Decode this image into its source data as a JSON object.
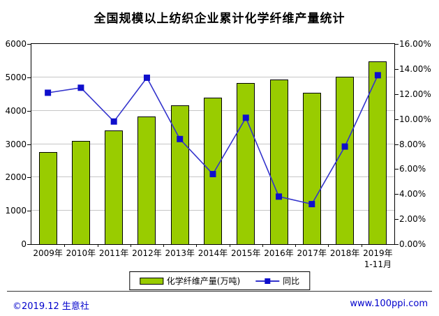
{
  "title": "全国规模以上纺织企业累计化学纤维产量统计",
  "footer": {
    "copyright": "©2019.12 生意社",
    "website": "www.100ppi.com"
  },
  "colors": {
    "bar": "#99CC00",
    "bar_border": "#000000",
    "line": "#3333CC",
    "marker": "#0F0FCC",
    "grid": "#C6C6C6",
    "axis_text": "#000000",
    "footer_text": "#0000CC"
  },
  "chart_data": {
    "type": "bar",
    "title": "全国规模以上纺织企业累计化学纤维产量统计",
    "categories": [
      "2009年",
      "2010年",
      "2011年",
      "2012年",
      "2013年",
      "2014年",
      "2015年",
      "2016年",
      "2017年",
      "2018年",
      "2019年"
    ],
    "last_category_note": "1-11月",
    "series": [
      {
        "name": "化学纤维产量(万吨)",
        "type": "bar",
        "axis": "left",
        "values": [
          2750,
          3090,
          3400,
          3830,
          4160,
          4390,
          4830,
          4930,
          4540,
          5010,
          5480
        ]
      },
      {
        "name": "同比",
        "type": "line",
        "axis": "right",
        "values": [
          12.1,
          12.5,
          9.8,
          13.3,
          8.4,
          5.6,
          10.1,
          3.8,
          3.2,
          7.8,
          13.5
        ]
      }
    ],
    "left_axis": {
      "min": 0,
      "max": 6000,
      "step": 1000,
      "ticks": [
        "0",
        "1000",
        "2000",
        "3000",
        "4000",
        "5000",
        "6000"
      ]
    },
    "right_axis": {
      "min": 0,
      "max": 16,
      "step": 2,
      "ticks": [
        "0.00%",
        "2.00%",
        "4.00%",
        "6.00%",
        "8.00%",
        "10.00%",
        "12.00%",
        "14.00%",
        "16.00%"
      ]
    },
    "grid": true,
    "legend_position": "bottom"
  }
}
